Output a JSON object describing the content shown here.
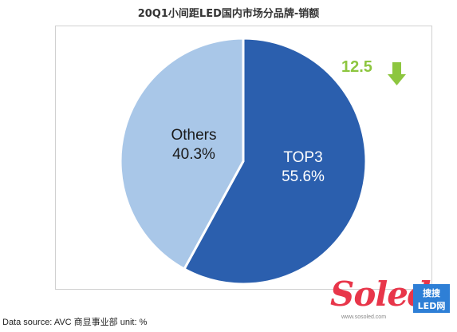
{
  "chart_data": {
    "type": "pie",
    "title": "20Q1小间距LED国内市场分品牌-销额",
    "slices": [
      {
        "label": "TOP3",
        "value": 55.6,
        "display": "55.6%",
        "color": "#2b5fae"
      },
      {
        "label": "Others",
        "value": 40.3,
        "display": "40.3%",
        "color": "#a9c7e8"
      }
    ],
    "annotation": {
      "text": "12.5",
      "direction": "down",
      "color": "#8dc63f"
    },
    "source_note": "Data source: AVC 商显事业部 unit: %"
  },
  "watermark": {
    "text": "Soled",
    "box_text": "搜搜 LED网",
    "url": "www.sosoled.com"
  }
}
